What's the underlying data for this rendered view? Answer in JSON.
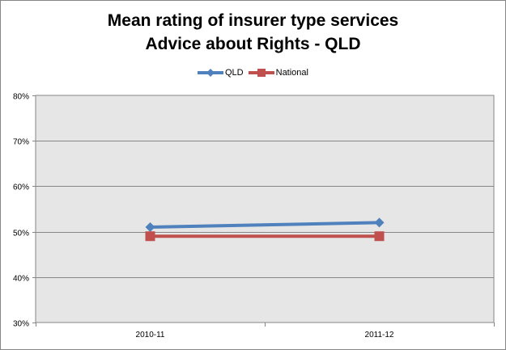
{
  "chart_data": {
    "type": "line",
    "title_lines": [
      "Mean rating of insurer type services",
      "Advice about Rights - QLD"
    ],
    "categories": [
      "2010-11",
      "2011-12"
    ],
    "series": [
      {
        "name": "QLD",
        "values": [
          51,
          52
        ],
        "color": "#4F81BD",
        "marker": "diamond"
      },
      {
        "name": "National",
        "values": [
          49,
          49
        ],
        "color": "#C0504D",
        "marker": "square"
      }
    ],
    "y_ticks": [
      "30%",
      "40%",
      "50%",
      "60%",
      "70%",
      "80%"
    ],
    "ylim": [
      30,
      80
    ],
    "y_unit": "%",
    "grid": true,
    "plot_background": "#E6E6E6",
    "legend_position": "top"
  }
}
